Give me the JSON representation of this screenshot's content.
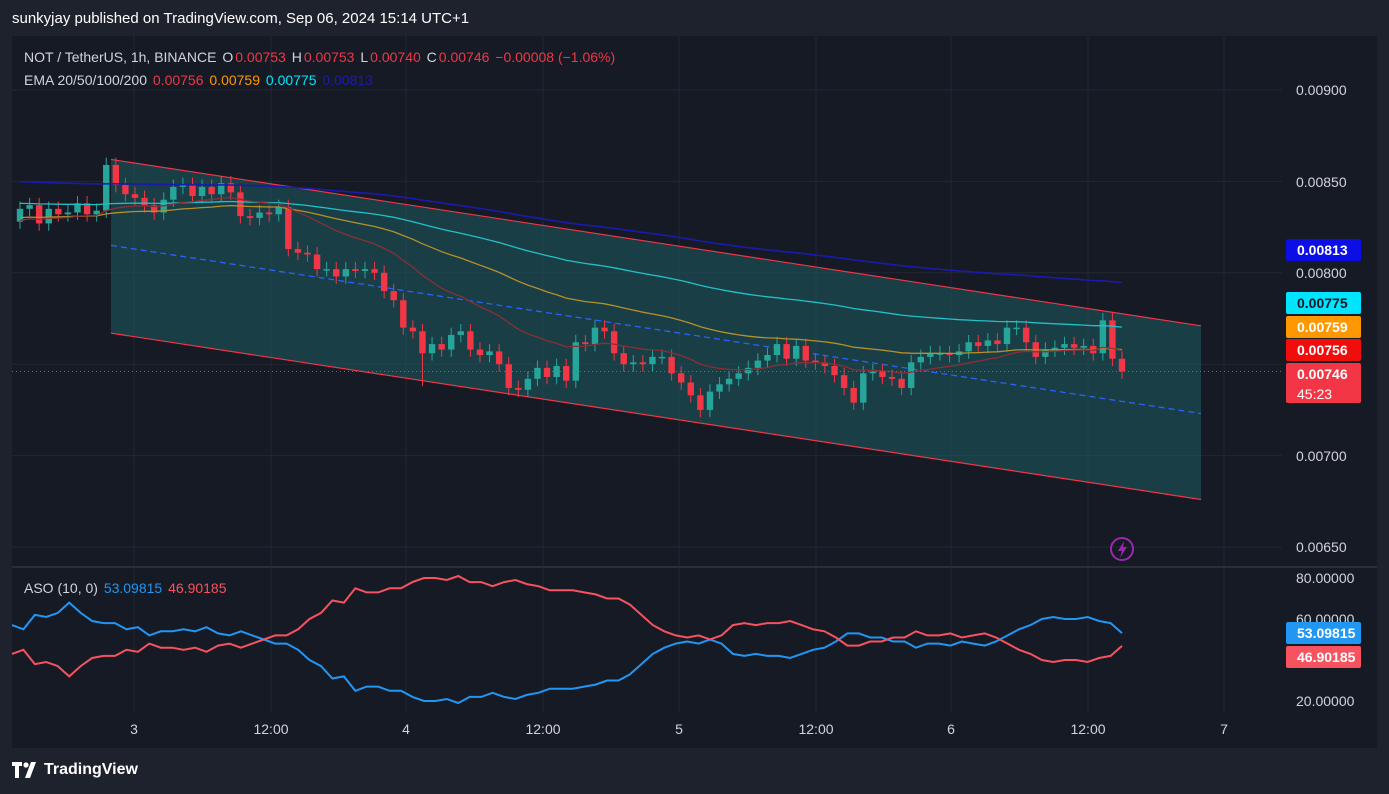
{
  "header": {
    "caption": "sunkyjay published on TradingView.com, Sep 06, 2024 15:14 UTC+1"
  },
  "legend": {
    "symbol": "NOT / TetherUS, 1h, BINANCE",
    "o_label": "O",
    "o": "0.00753",
    "h_label": "H",
    "h": "0.00753",
    "l_label": "L",
    "l": "0.00740",
    "c_label": "C",
    "c": "0.00746",
    "change": "−0.00008 (−1.06%)",
    "ema_label": "EMA 20/50/100/200",
    "ema20": "0.00756",
    "ema50": "0.00759",
    "ema100": "0.00775",
    "ema200": "0.00813"
  },
  "aso": {
    "label": "ASO (10, 0)",
    "bull": "53.09815",
    "bear": "46.90185"
  },
  "price_axis": {
    "ticks": [
      "0.00900",
      "0.00850",
      "0.00800",
      "0.00700",
      "0.00650"
    ],
    "tags": {
      "ema200": "0.00813",
      "ema100": "0.00775",
      "ema50": "0.00759",
      "ema20": "0.00756",
      "last": "0.00746",
      "countdown": "45:23"
    }
  },
  "aso_axis": {
    "ticks": [
      "80.00000",
      "60.00000",
      "20.00000"
    ],
    "tags": {
      "bull": "53.09815",
      "bear": "46.90185"
    }
  },
  "time_axis": {
    "labels": [
      "3",
      "12:00",
      "4",
      "12:00",
      "5",
      "12:00",
      "6",
      "12:00",
      "7"
    ]
  },
  "footer": {
    "brand": "TradingView"
  },
  "colors": {
    "up": "#26a69a",
    "down": "#f23645",
    "ema20": "#f23645",
    "ema50": "#ff9800",
    "ema100": "#00e5ff",
    "ema200": "#1a1aad",
    "channel": "#f23645",
    "midline": "#2962ff",
    "bull": "#2196f3",
    "bear": "#f7525f"
  },
  "chart_data": [
    {
      "type": "candlestick",
      "title": "NOT / TetherUS, 1h, BINANCE",
      "ylim": [
        0.0064,
        0.0093
      ],
      "y_ticks": [
        0.0065,
        0.007,
        0.008,
        0.0085,
        0.009
      ],
      "closes": [
        0.00835,
        0.00837,
        0.00827,
        0.00835,
        0.00832,
        0.00833,
        0.00838,
        0.00832,
        0.00834,
        0.00859,
        0.00848,
        0.00843,
        0.00841,
        0.00837,
        0.00833,
        0.0084,
        0.00847,
        0.00848,
        0.00842,
        0.00847,
        0.00843,
        0.00849,
        0.00844,
        0.00831,
        0.0083,
        0.00833,
        0.00832,
        0.00836,
        0.00813,
        0.00811,
        0.0081,
        0.00802,
        0.00802,
        0.00798,
        0.00802,
        0.00801,
        0.00802,
        0.008,
        0.0079,
        0.00785,
        0.0077,
        0.00768,
        0.00756,
        0.00761,
        0.00758,
        0.00766,
        0.00768,
        0.00758,
        0.00755,
        0.00757,
        0.0075,
        0.00737,
        0.00736,
        0.00742,
        0.00748,
        0.00743,
        0.00749,
        0.00741,
        0.00762,
        0.00761,
        0.0077,
        0.00768,
        0.00756,
        0.0075,
        0.00751,
        0.0075,
        0.00754,
        0.00754,
        0.00745,
        0.0074,
        0.00733,
        0.00725,
        0.00735,
        0.00739,
        0.00742,
        0.00745,
        0.00748,
        0.00752,
        0.00755,
        0.00761,
        0.00753,
        0.0076,
        0.00752,
        0.00751,
        0.00749,
        0.00744,
        0.00737,
        0.00729,
        0.00745,
        0.00746,
        0.00743,
        0.00742,
        0.00737,
        0.00751,
        0.00754,
        0.00756,
        0.00756,
        0.00755,
        0.00757,
        0.00762,
        0.0076,
        0.00763,
        0.00761,
        0.0077,
        0.0077,
        0.00762,
        0.00754,
        0.00758,
        0.00759,
        0.00761,
        0.00759,
        0.0076,
        0.00756,
        0.00774,
        0.00753,
        0.00746
      ],
      "channel": {
        "upper": [
          [
            0.00862,
            0.00771
          ]
        ],
        "lower": [
          [
            0.00767,
            0.00676
          ]
        ],
        "mid": [
          [
            0.00815,
            0.00723
          ]
        ]
      },
      "series": [
        {
          "name": "EMA 20",
          "last": 0.00756
        },
        {
          "name": "EMA 50",
          "last": 0.00759
        },
        {
          "name": "EMA 100",
          "last": 0.00775
        },
        {
          "name": "EMA 200",
          "last": 0.00813
        }
      ]
    },
    {
      "type": "line",
      "title": "ASO (10, 0)",
      "ylim": [
        15,
        85
      ],
      "y_ticks": [
        20,
        60,
        80
      ],
      "series": [
        {
          "name": "bull",
          "values": [
            57,
            55,
            62,
            61,
            63,
            68,
            63,
            59,
            58,
            58,
            55,
            56,
            52,
            54,
            54,
            55,
            54,
            56,
            53,
            52,
            54,
            52,
            50,
            48,
            48,
            45,
            40,
            37,
            31,
            32,
            25,
            27,
            27,
            25,
            25,
            22,
            20,
            20,
            21,
            19,
            22,
            22,
            24,
            22,
            21,
            23,
            24,
            26,
            26,
            26,
            27,
            28,
            30,
            30,
            33,
            38,
            43,
            46,
            48,
            49,
            48,
            50,
            48,
            43,
            42,
            43,
            42,
            42,
            41,
            43,
            45,
            46,
            49,
            53,
            53,
            51,
            51,
            49,
            49,
            46,
            48,
            48,
            47,
            49,
            48,
            47,
            49,
            52,
            55,
            57,
            60,
            61,
            60,
            60,
            61,
            59,
            58,
            53.1
          ]
        },
        {
          "name": "bear",
          "values": [
            43,
            45,
            38,
            39,
            37,
            32,
            37,
            41,
            42,
            42,
            45,
            44,
            48,
            46,
            46,
            45,
            46,
            44,
            47,
            48,
            46,
            48,
            50,
            52,
            52,
            55,
            60,
            63,
            69,
            68,
            75,
            73,
            73,
            75,
            75,
            78,
            80,
            80,
            79,
            81,
            78,
            78,
            76,
            78,
            79,
            77,
            76,
            74,
            74,
            74,
            73,
            72,
            70,
            70,
            67,
            62,
            57,
            54,
            52,
            51,
            52,
            50,
            52,
            57,
            58,
            57,
            58,
            58,
            59,
            57,
            55,
            54,
            51,
            47,
            47,
            49,
            49,
            51,
            51,
            54,
            52,
            52,
            53,
            51,
            52,
            53,
            51,
            48,
            45,
            43,
            40,
            39,
            40,
            40,
            39,
            41,
            42,
            46.9
          ]
        }
      ]
    }
  ]
}
